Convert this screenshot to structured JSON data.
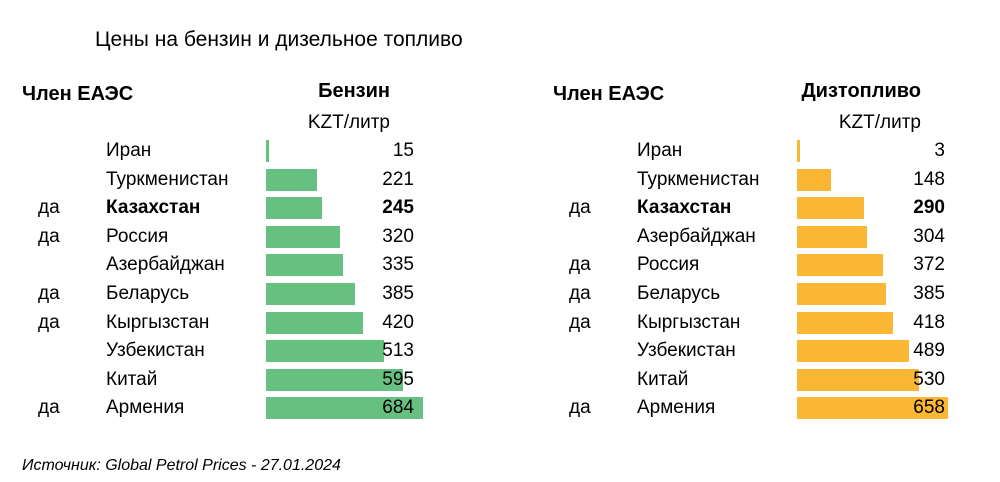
{
  "title": "Цены на бензин и дизельное топливо",
  "source": "Источник: Global Petrol Prices - 27.01.2024",
  "colors": {
    "petrol": "#66c080",
    "diesel": "#fbb634"
  },
  "chart_data": [
    {
      "type": "bar",
      "orientation": "horizontal",
      "member_header": "Член ЕАЭС",
      "title": "Бензин",
      "unit": "KZT/литр",
      "color": "#66c080",
      "rows": [
        {
          "member": "",
          "country": "Иран",
          "value": 15,
          "highlight": false
        },
        {
          "member": "",
          "country": "Туркменистан",
          "value": 221,
          "highlight": false
        },
        {
          "member": "да",
          "country": "Казахстан",
          "value": 245,
          "highlight": true
        },
        {
          "member": "да",
          "country": "Россия",
          "value": 320,
          "highlight": false
        },
        {
          "member": "",
          "country": "Азербайджан",
          "value": 335,
          "highlight": false
        },
        {
          "member": "да",
          "country": "Беларусь",
          "value": 385,
          "highlight": false
        },
        {
          "member": "да",
          "country": "Кыргызстан",
          "value": 420,
          "highlight": false
        },
        {
          "member": "",
          "country": "Узбекистан",
          "value": 513,
          "highlight": false
        },
        {
          "member": "",
          "country": "Китай",
          "value": 595,
          "highlight": false
        },
        {
          "member": "да",
          "country": "Армения",
          "value": 684,
          "highlight": false
        }
      ]
    },
    {
      "type": "bar",
      "orientation": "horizontal",
      "member_header": "Член ЕАЭС",
      "title": "Дизтопливо",
      "unit": "KZT/литр",
      "color": "#fbb634",
      "rows": [
        {
          "member": "",
          "country": "Иран",
          "value": 3,
          "highlight": false
        },
        {
          "member": "",
          "country": "Туркменистан",
          "value": 148,
          "highlight": false
        },
        {
          "member": "да",
          "country": "Казахстан",
          "value": 290,
          "highlight": true
        },
        {
          "member": "",
          "country": "Азербайджан",
          "value": 304,
          "highlight": false
        },
        {
          "member": "да",
          "country": "Россия",
          "value": 372,
          "highlight": false
        },
        {
          "member": "да",
          "country": "Беларусь",
          "value": 385,
          "highlight": false
        },
        {
          "member": "да",
          "country": "Кыргызстан",
          "value": 418,
          "highlight": false
        },
        {
          "member": "",
          "country": "Узбекистан",
          "value": 489,
          "highlight": false
        },
        {
          "member": "",
          "country": "Китай",
          "value": 530,
          "highlight": false
        },
        {
          "member": "да",
          "country": "Армения",
          "value": 658,
          "highlight": false
        }
      ]
    }
  ]
}
